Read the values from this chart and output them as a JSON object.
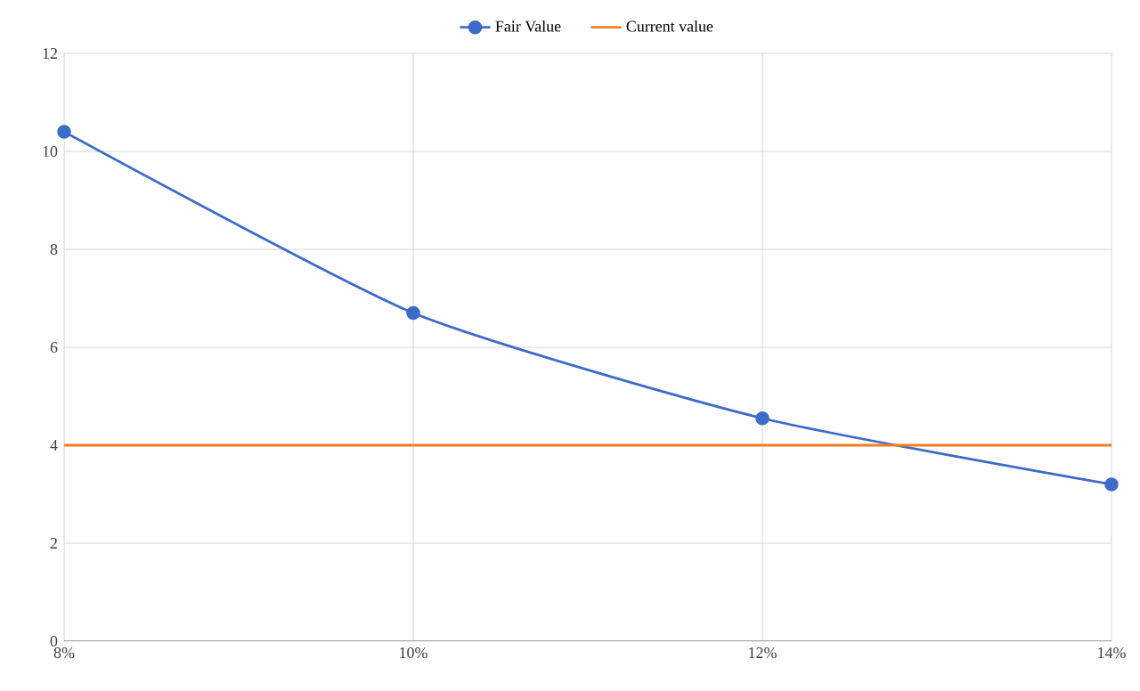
{
  "chart_data": {
    "type": "line",
    "x": [
      8,
      10,
      12,
      14
    ],
    "xlim": [
      8,
      14
    ],
    "xticks": [
      {
        "value": 8,
        "label": "8%"
      },
      {
        "value": 10,
        "label": "10%"
      },
      {
        "value": 12,
        "label": "12%"
      },
      {
        "value": 14,
        "label": "14%"
      }
    ],
    "ylim": [
      0,
      12
    ],
    "yticks": [
      0,
      2,
      4,
      6,
      8,
      10,
      12
    ],
    "grid": true,
    "legend": "top",
    "series": [
      {
        "name": "Fair Value",
        "color": "#3c6bc8",
        "marker": "circle",
        "values": [
          10.4,
          6.7,
          4.55,
          3.2
        ]
      },
      {
        "name": "Current value",
        "color": "#f07d22",
        "marker": "none",
        "values": [
          4,
          4,
          4,
          4
        ]
      }
    ]
  }
}
